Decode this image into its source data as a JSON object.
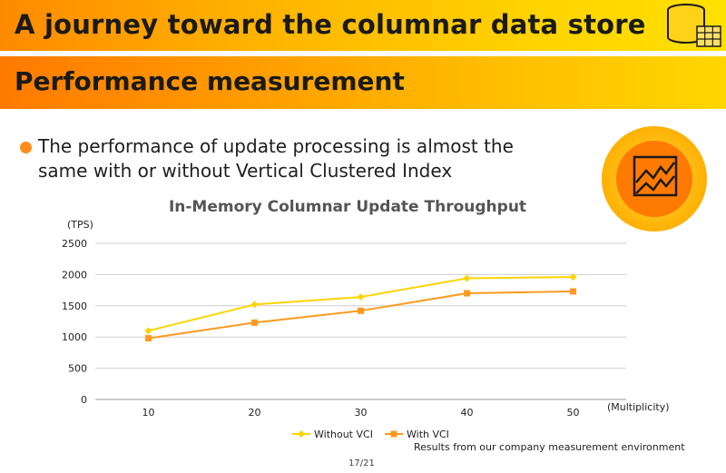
{
  "header": {
    "title": "A journey toward the columnar data store",
    "subtitle": "Performance measurement"
  },
  "bullet": {
    "text": "The performance of update processing is almost the same with or without Vertical Clustered Index"
  },
  "chart_data": {
    "type": "line",
    "title": "In-Memory Columnar Update Throughput",
    "ylabel": "(TPS)",
    "xlabel": "(Multiplicity)",
    "categories": [
      "10",
      "20",
      "30",
      "40",
      "50"
    ],
    "y_ticks": [
      "0",
      "500",
      "1000",
      "1500",
      "2000",
      "2500"
    ],
    "ylim": [
      0,
      2500
    ],
    "grid": true,
    "legend": "bottom",
    "series": [
      {
        "name": "Without VCI",
        "color": "#ffd400",
        "marker": "diamond",
        "values": [
          1100,
          1520,
          1640,
          1940,
          1960
        ]
      },
      {
        "name": "With VCI",
        "color": "#ff9a1f",
        "marker": "square",
        "values": [
          980,
          1230,
          1420,
          1700,
          1730
        ]
      }
    ]
  },
  "footnote": "Results from our company measurement environment",
  "page": "17/21",
  "colors": {
    "accent_orange": "#ff8a00",
    "accent_yellow": "#ffd400"
  },
  "icons": {
    "header": "database-table-icon",
    "badge": "line-chart-icon"
  }
}
